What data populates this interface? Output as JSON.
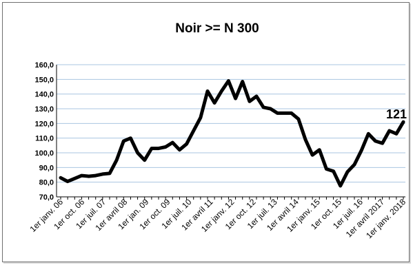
{
  "chart_data": {
    "type": "line",
    "title": "Noir >= N 300",
    "xlabel": "",
    "ylabel": "",
    "ylim": [
      70,
      160
    ],
    "yticks": [
      "70,0",
      "80,0",
      "90,0",
      "100,0",
      "110,0",
      "120,0",
      "130,0",
      "140,0",
      "150,0",
      "160,0"
    ],
    "xtick_labels": [
      "1er janv. 06",
      "1er oct. 06",
      "1er juil. 07",
      "1er avril 08",
      "1er jan. 09",
      "1er oct. 09",
      "1er juil. 10",
      "1er avril 11",
      "1er janv. 12",
      "1er oct. 12",
      "1er juil. 13",
      "1er avril 14",
      "1er janv. 15",
      "1er oct. 15",
      "1er juil. 16",
      "1er avril 2017",
      "1er janv. 2018"
    ],
    "grid": true,
    "line_color": "#000000",
    "grid_color": "#a8c4e0",
    "annotation": "121",
    "series": [
      {
        "values": [
          83,
          80.5,
          82.5,
          84.5,
          84,
          84.5,
          85.5,
          86,
          95,
          108,
          110,
          100,
          95,
          103,
          103,
          104,
          107,
          102,
          106,
          115,
          124,
          142,
          134,
          142,
          149,
          137,
          148.5,
          135,
          138.5,
          131,
          130,
          127,
          127,
          127,
          123,
          109,
          98.5,
          102,
          89,
          87.5,
          77.5,
          87,
          92,
          101.5,
          113,
          108,
          106.5,
          115,
          113,
          121
        ]
      }
    ]
  }
}
